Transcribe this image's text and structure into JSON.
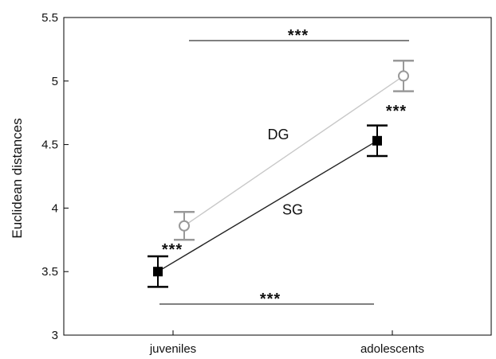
{
  "chart_data": {
    "type": "line",
    "title": "",
    "xlabel": "",
    "ylabel": "Euclidean distances",
    "categories": [
      "juveniles",
      "adolescents"
    ],
    "ylim": [
      3,
      5.5
    ],
    "yticks": [
      3,
      3.5,
      4,
      4.5,
      5,
      5.5
    ],
    "ytick_labels": [
      "3",
      "3.5",
      "4",
      "4.5",
      "5",
      "5.5"
    ],
    "grid": false,
    "legend": "none",
    "series": [
      {
        "name": "SG",
        "values": [
          3.5,
          4.53
        ],
        "error": [
          0.12,
          0.12
        ],
        "marker": "filled-square",
        "color": "#000000",
        "line_color": "#222222",
        "error_color": "#000000"
      },
      {
        "name": "DG",
        "values": [
          3.86,
          5.04
        ],
        "error": [
          0.11,
          0.12
        ],
        "marker": "open-circle",
        "color": "#999999",
        "line_color": "#c8c8c8",
        "error_color": "#999999"
      }
    ],
    "annotations": [
      {
        "text": "***",
        "meaning": "DG juveniles vs adolescents"
      },
      {
        "text": "***",
        "meaning": "SG juveniles vs adolescents"
      },
      {
        "text": "***",
        "meaning": "juveniles SG vs DG"
      },
      {
        "text": "***",
        "meaning": "adolescents SG vs DG"
      }
    ]
  }
}
